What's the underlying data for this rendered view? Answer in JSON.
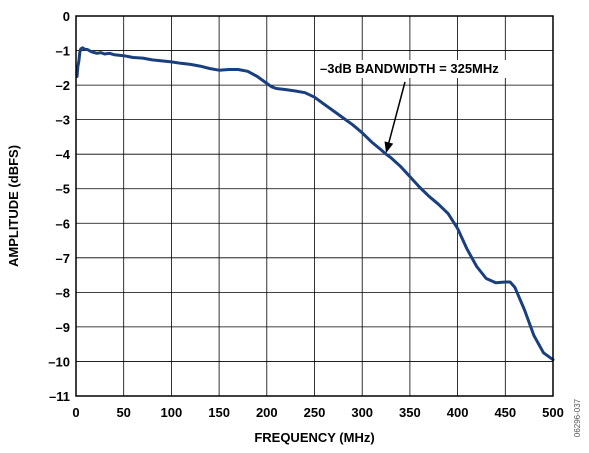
{
  "chart_data": {
    "type": "line",
    "xlabel": "FREQUENCY (MHz)",
    "ylabel": "AMPLITUDE (dBFS)",
    "xlim": [
      0,
      500
    ],
    "ylim": [
      -11,
      0
    ],
    "x_ticks": [
      0,
      50,
      100,
      150,
      200,
      250,
      300,
      350,
      400,
      450,
      500
    ],
    "y_ticks": [
      0,
      -1,
      -2,
      -3,
      -4,
      -5,
      -6,
      -7,
      -8,
      -9,
      -10,
      -11
    ],
    "x_tick_labels": [
      "0",
      "50",
      "100",
      "150",
      "200",
      "250",
      "300",
      "350",
      "400",
      "450",
      "500"
    ],
    "y_tick_labels": [
      "0",
      "–1",
      "–2",
      "–3",
      "–4",
      "–5",
      "–6",
      "–7",
      "–8",
      "–9",
      "–10",
      "–11"
    ],
    "grid": true,
    "series_color": "#1a3f7f",
    "series": [
      {
        "x": [
          1,
          2,
          3,
          4,
          5,
          7,
          9,
          12,
          15,
          18,
          22,
          26,
          30,
          35,
          40,
          50,
          60,
          70,
          80,
          90,
          100,
          110,
          120,
          130,
          140,
          150,
          160,
          170,
          180,
          190,
          200,
          205,
          210,
          220,
          230,
          240,
          250,
          260,
          270,
          280,
          290,
          300,
          310,
          320,
          325,
          330,
          340,
          350,
          360,
          370,
          380,
          390,
          400,
          410,
          420,
          430,
          440,
          450,
          455,
          460,
          470,
          480,
          490,
          500
        ],
        "y": [
          -1.75,
          -1.45,
          -1.3,
          -1.05,
          -0.95,
          -0.92,
          -0.96,
          -0.97,
          -1.02,
          -1.05,
          -1.08,
          -1.06,
          -1.1,
          -1.08,
          -1.12,
          -1.15,
          -1.2,
          -1.22,
          -1.27,
          -1.3,
          -1.33,
          -1.37,
          -1.4,
          -1.45,
          -1.52,
          -1.57,
          -1.55,
          -1.55,
          -1.6,
          -1.75,
          -1.95,
          -2.05,
          -2.1,
          -2.13,
          -2.17,
          -2.22,
          -2.35,
          -2.55,
          -2.75,
          -2.95,
          -3.15,
          -3.38,
          -3.65,
          -3.88,
          -4.0,
          -4.1,
          -4.35,
          -4.65,
          -4.95,
          -5.22,
          -5.45,
          -5.72,
          -6.15,
          -6.75,
          -7.25,
          -7.6,
          -7.72,
          -7.7,
          -7.7,
          -7.85,
          -8.5,
          -9.25,
          -9.75,
          -9.95
        ]
      }
    ],
    "annotation": {
      "text": "–3dB BANDWIDTH = 325MHz",
      "x": 325,
      "y": -3.97
    }
  },
  "figure_id": "06296-037"
}
